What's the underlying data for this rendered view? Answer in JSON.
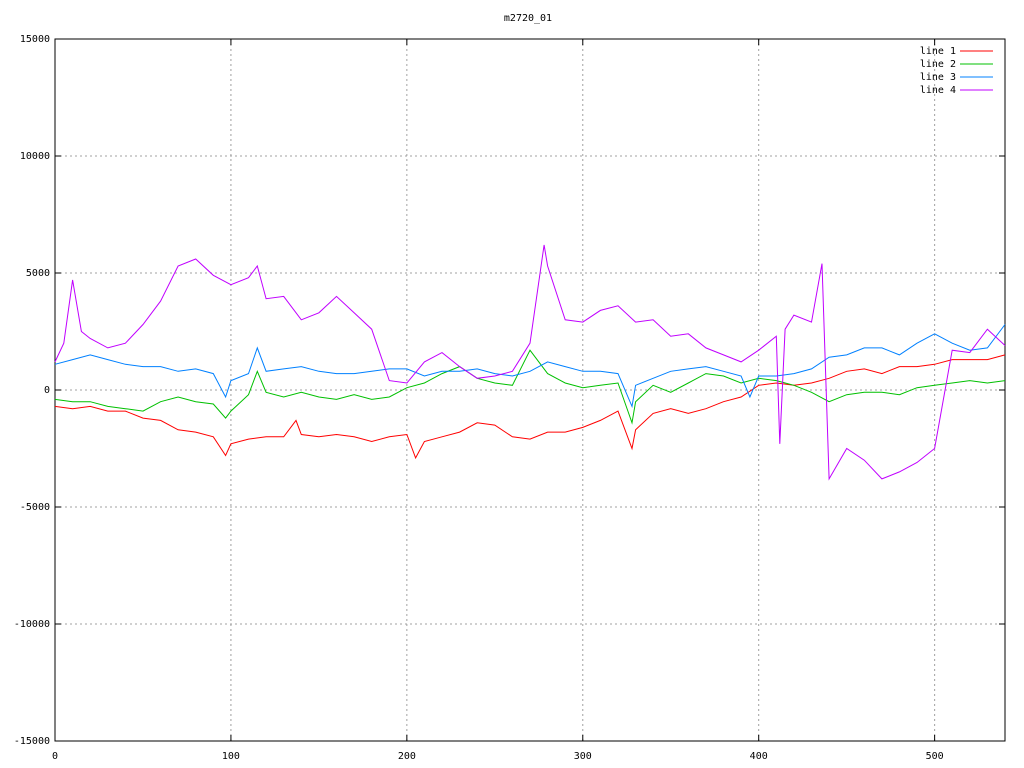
{
  "chart_data": {
    "type": "line",
    "title": "m2720_01",
    "xlim": [
      0,
      540
    ],
    "xticks": [
      0,
      100,
      200,
      300,
      400,
      500
    ],
    "ylim": [
      -15000,
      15000
    ],
    "yticks": [
      -15000,
      -10000,
      -5000,
      0,
      5000,
      10000,
      15000
    ],
    "grid": true,
    "legend": "top-right",
    "series": [
      {
        "name": "line 1",
        "color": "#ff0000",
        "x": [
          0,
          10,
          20,
          30,
          40,
          50,
          60,
          70,
          80,
          90,
          97,
          100,
          110,
          120,
          130,
          137,
          140,
          150,
          160,
          170,
          180,
          190,
          200,
          205,
          210,
          220,
          230,
          240,
          250,
          260,
          270,
          280,
          290,
          300,
          310,
          320,
          328,
          330,
          340,
          350,
          360,
          370,
          380,
          390,
          400,
          410,
          420,
          430,
          440,
          450,
          460,
          470,
          480,
          490,
          500,
          510,
          520,
          530,
          540
        ],
        "values": [
          -700,
          -800,
          -700,
          -900,
          -900,
          -1200,
          -1300,
          -1700,
          -1800,
          -2000,
          -2800,
          -2300,
          -2100,
          -2000,
          -2000,
          -1300,
          -1900,
          -2000,
          -1900,
          -2000,
          -2200,
          -2000,
          -1900,
          -2900,
          -2200,
          -2000,
          -1800,
          -1400,
          -1500,
          -2000,
          -2100,
          -1800,
          -1800,
          -1600,
          -1300,
          -900,
          -2500,
          -1700,
          -1000,
          -800,
          -1000,
          -800,
          -500,
          -300,
          200,
          300,
          200,
          300,
          500,
          800,
          900,
          700,
          1000,
          1000,
          1100,
          1300,
          1300,
          1300,
          1500
        ]
      },
      {
        "name": "line 2",
        "color": "#00c000",
        "x": [
          0,
          10,
          20,
          30,
          40,
          50,
          60,
          70,
          80,
          90,
          97,
          100,
          110,
          115,
          120,
          130,
          140,
          150,
          160,
          170,
          180,
          190,
          200,
          210,
          220,
          230,
          240,
          250,
          260,
          270,
          280,
          290,
          300,
          310,
          320,
          328,
          330,
          340,
          350,
          360,
          370,
          380,
          390,
          400,
          410,
          420,
          430,
          440,
          450,
          460,
          470,
          480,
          490,
          500,
          510,
          520,
          530,
          540
        ],
        "values": [
          -400,
          -500,
          -500,
          -700,
          -800,
          -900,
          -500,
          -300,
          -500,
          -600,
          -1200,
          -900,
          -200,
          800,
          -100,
          -300,
          -100,
          -300,
          -400,
          -200,
          -400,
          -300,
          100,
          300,
          700,
          1000,
          500,
          300,
          200,
          1700,
          700,
          300,
          100,
          200,
          300,
          -1400,
          -500,
          200,
          -100,
          300,
          700,
          600,
          300,
          500,
          400,
          200,
          -100,
          -500,
          -200,
          -100,
          -100,
          -200,
          100,
          200,
          300,
          400,
          300,
          400
        ]
      },
      {
        "name": "line 3",
        "color": "#0080ff",
        "x": [
          0,
          10,
          20,
          30,
          40,
          50,
          60,
          70,
          80,
          90,
          97,
          100,
          110,
          115,
          120,
          130,
          140,
          150,
          160,
          170,
          180,
          190,
          200,
          210,
          220,
          230,
          240,
          250,
          260,
          270,
          280,
          290,
          300,
          310,
          320,
          328,
          330,
          340,
          350,
          360,
          370,
          380,
          390,
          395,
          400,
          410,
          420,
          430,
          440,
          450,
          460,
          470,
          480,
          490,
          500,
          510,
          520,
          530,
          540
        ],
        "values": [
          1100,
          1300,
          1500,
          1300,
          1100,
          1000,
          1000,
          800,
          900,
          700,
          -300,
          400,
          700,
          1800,
          800,
          900,
          1000,
          800,
          700,
          700,
          800,
          900,
          900,
          600,
          800,
          800,
          900,
          700,
          600,
          800,
          1200,
          1000,
          800,
          800,
          700,
          -700,
          200,
          500,
          800,
          900,
          1000,
          800,
          600,
          -300,
          600,
          600,
          700,
          900,
          1400,
          1500,
          1800,
          1800,
          1500,
          2000,
          2400,
          2000,
          1700,
          1800,
          2800
        ]
      },
      {
        "name": "line 4",
        "color": "#c000ff",
        "x": [
          0,
          5,
          10,
          15,
          20,
          30,
          40,
          50,
          60,
          70,
          80,
          90,
          100,
          110,
          115,
          120,
          130,
          140,
          150,
          160,
          170,
          180,
          190,
          200,
          210,
          220,
          230,
          240,
          250,
          260,
          270,
          278,
          280,
          290,
          300,
          310,
          320,
          330,
          340,
          350,
          360,
          370,
          380,
          390,
          400,
          410,
          412,
          415,
          420,
          430,
          436,
          440,
          450,
          460,
          470,
          480,
          490,
          500,
          510,
          520,
          530,
          540
        ],
        "values": [
          1200,
          2000,
          4700,
          2500,
          2200,
          1800,
          2000,
          2800,
          3800,
          5300,
          5600,
          4900,
          4500,
          4800,
          5300,
          3900,
          4000,
          3000,
          3300,
          4000,
          3300,
          2600,
          400,
          300,
          1200,
          1600,
          1000,
          500,
          600,
          800,
          2000,
          6200,
          5300,
          3000,
          2900,
          3400,
          3600,
          2900,
          3000,
          2300,
          2400,
          1800,
          1500,
          1200,
          1700,
          2300,
          -2300,
          2600,
          3200,
          2900,
          5400,
          -3800,
          -2500,
          -3000,
          -3800,
          -3500,
          -3100,
          -2500,
          1700,
          1600,
          2600,
          1900
        ]
      }
    ]
  }
}
